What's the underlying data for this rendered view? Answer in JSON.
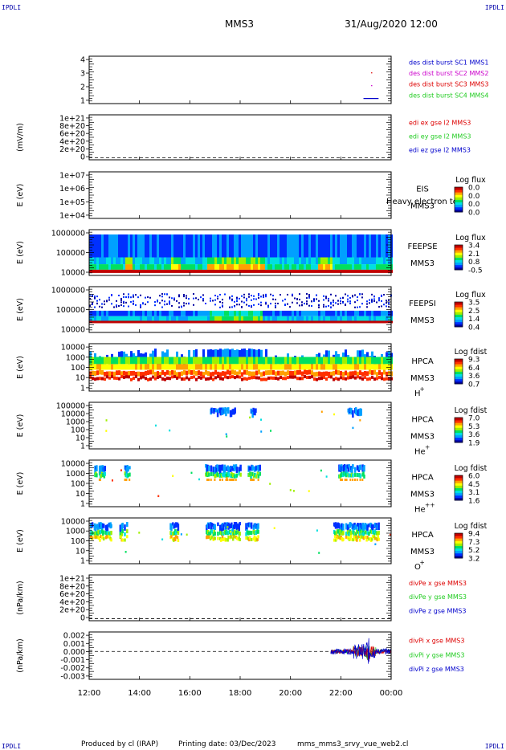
{
  "header": {
    "corner_left": "IPDLI",
    "corner_right": "IPDLI",
    "mission": "MMS3",
    "date": "31/Aug/2020 12:00"
  },
  "footer": {
    "producer": "Produced by cl (IRAP)",
    "printing_date": "Printing date: 03/Dec/2023",
    "script_name": "mms_mms3_srvy_vue_web2.cl",
    "corner_left": "IPDLI",
    "corner_right": "IPDLI"
  },
  "time_axis": {
    "ticks": [
      "12:00",
      "14:00",
      "16:00",
      "18:00",
      "20:00",
      "22:00",
      "00:00"
    ],
    "start_hour": 12,
    "end_hour": 24
  },
  "colors": {
    "red": "#dd0000",
    "green": "#22cc22",
    "blue": "#0000cc",
    "magenta": "#cc00cc",
    "spectrum": [
      "#0000a0",
      "#0030ff",
      "#00a0ff",
      "#00e0e0",
      "#00e060",
      "#a0f000",
      "#ffff00",
      "#ffa000",
      "#ff3000",
      "#c00000"
    ]
  },
  "chart_data": [
    {
      "type": "line",
      "id": "burst",
      "yticks": [
        "1",
        "2",
        "3",
        "4"
      ],
      "ylim": [
        0.6,
        4.3
      ],
      "legend": [
        {
          "text": "des dist burst SC1 MMS1",
          "color": "#0000cc"
        },
        {
          "text": "des dist burst SC2 MMS2",
          "color": "#cc00cc"
        },
        {
          "text": "des dist burst SC3 MMS3",
          "color": "#dd0000"
        },
        {
          "text": "des dist burst SC4 MMS4",
          "color": "#22cc22"
        }
      ],
      "segments": [
        {
          "start": 22.9,
          "end": 23.5,
          "level": 1,
          "color": "#0000cc"
        },
        {
          "start": 23.2,
          "end": 23.25,
          "level": 3,
          "color": "#dd0000"
        },
        {
          "start": 23.2,
          "end": 23.25,
          "level": 2,
          "color": "#cc00cc"
        }
      ]
    },
    {
      "type": "line",
      "id": "edi",
      "ylabel": "(mV/m)",
      "yticks": [
        "0",
        "2e+20",
        "4e+20",
        "6e+20",
        "8e+20",
        "1e+21"
      ],
      "ylim": [
        -0.5,
        10.6
      ],
      "legend": [
        {
          "text": "edi ex gse l2 MMS3",
          "color": "#dd0000"
        },
        {
          "text": "edi ey gse l2 MMS3",
          "color": "#22cc22"
        },
        {
          "text": "edi ez gse l2 MMS3",
          "color": "#0000cc"
        }
      ]
    },
    {
      "type": "heatmap",
      "id": "eis",
      "ylabel": "E (eV)",
      "yticks": [
        "1e+04",
        "1e+05",
        "1e+06",
        "1e+07"
      ],
      "labels": [
        "EIS",
        "MMS3"
      ],
      "overlay_label": "Heavy electron to",
      "colorbar": {
        "title": "Log flux",
        "ticks": [
          "0.0",
          "0.0",
          "0.0",
          "0.0"
        ]
      }
    },
    {
      "type": "heatmap",
      "id": "feepse",
      "ylabel": "E (eV)",
      "yticks": [
        "10000",
        "100000",
        "1000000"
      ],
      "labels": [
        "FEEPSE",
        "MMS3"
      ],
      "colorbar": {
        "title": "Log flux",
        "ticks": [
          "3.4",
          "2.1",
          "0.8",
          "-0.5"
        ]
      }
    },
    {
      "type": "heatmap",
      "id": "feepsi",
      "ylabel": "E (eV)",
      "yticks": [
        "10000",
        "100000",
        "1000000"
      ],
      "labels": [
        "FEEPSI",
        "MMS3"
      ],
      "colorbar": {
        "title": "Log flux",
        "ticks": [
          "3.5",
          "2.5",
          "1.4",
          "0.4"
        ]
      }
    },
    {
      "type": "heatmap",
      "id": "hpca_h",
      "ylabel": "E (eV)",
      "yticks": [
        "1",
        "10",
        "100",
        "1000",
        "10000"
      ],
      "labels": [
        "HPCA",
        "MMS3"
      ],
      "species": "H",
      "species_sup": "+",
      "colorbar": {
        "title": "Log fdist",
        "ticks": [
          "9.3",
          "6.4",
          "3.6",
          "0.7"
        ]
      }
    },
    {
      "type": "heatmap",
      "id": "hpca_he",
      "ylabel": "E (eV)",
      "yticks": [
        "1",
        "10",
        "100",
        "1000",
        "10000",
        "100000"
      ],
      "labels": [
        "HPCA",
        "MMS3"
      ],
      "species": "He",
      "species_sup": "+",
      "colorbar": {
        "title": "Log fdist",
        "ticks": [
          "7.0",
          "5.3",
          "3.6",
          "1.9"
        ]
      }
    },
    {
      "type": "heatmap",
      "id": "hpca_hepp",
      "ylabel": "E (eV)",
      "yticks": [
        "1",
        "10",
        "100",
        "1000",
        "10000"
      ],
      "labels": [
        "HPCA",
        "MMS3"
      ],
      "species": "He",
      "species_sup": "++",
      "colorbar": {
        "title": "Log fdist",
        "ticks": [
          "6.0",
          "4.5",
          "3.1",
          "1.6"
        ]
      }
    },
    {
      "type": "heatmap",
      "id": "hpca_o",
      "ylabel": "E (eV)",
      "yticks": [
        "1",
        "10",
        "100",
        "1000",
        "10000"
      ],
      "labels": [
        "HPCA",
        "MMS3"
      ],
      "species": "O",
      "species_sup": "+",
      "colorbar": {
        "title": "Log fdist",
        "ticks": [
          "9.4",
          "7.3",
          "5.2",
          "3.2"
        ]
      }
    },
    {
      "type": "line",
      "id": "divpe",
      "ylabel": "(nPa/km)",
      "yticks": [
        "0",
        "2e+20",
        "4e+20",
        "6e+20",
        "8e+20",
        "1e+21"
      ],
      "ylim": [
        -0.5,
        10.6
      ],
      "legend": [
        {
          "text": "divPe x gse MMS3",
          "color": "#dd0000"
        },
        {
          "text": "divPe y gse MMS3",
          "color": "#22cc22"
        },
        {
          "text": "divPe z gse MMS3",
          "color": "#0000cc"
        }
      ]
    },
    {
      "type": "line",
      "id": "divpi",
      "ylabel": "(nPa/km)",
      "yticks": [
        "-0.003",
        "-0.002",
        "-0.001",
        "0.000",
        "0.001",
        "0.002"
      ],
      "ylim": [
        -0.0033,
        0.0023
      ],
      "legend": [
        {
          "text": "divPi x gse MMS3",
          "color": "#dd0000"
        },
        {
          "text": "divPi y gse MMS3",
          "color": "#22cc22"
        },
        {
          "text": "divPi z gse MMS3",
          "color": "#0000cc"
        }
      ],
      "data_start_hour": 21.6,
      "data_end_hour": 24.0,
      "zero_line": true
    }
  ]
}
